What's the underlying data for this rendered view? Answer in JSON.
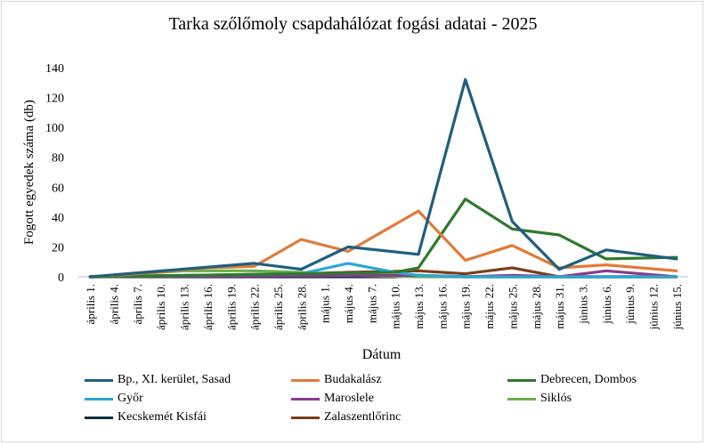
{
  "chart_data": {
    "type": "line",
    "title": "Tarka szőlőmoly csapdahálózat fogási adatai - 2025",
    "xlabel": "Dátum",
    "ylabel": "Fogott egyedek száma (db)",
    "ylim": [
      0,
      140
    ],
    "yticks": [
      "0",
      "20",
      "40",
      "60",
      "80",
      "100",
      "120",
      "140"
    ],
    "grid": false,
    "legend_position": "bottom",
    "x": [
      "április 1.",
      "április 4.",
      "április 7.",
      "április 10.",
      "április 13.",
      "április 16.",
      "április 19.",
      "április 22.",
      "április 25.",
      "április 28.",
      "május 1.",
      "május 4.",
      "május 7.",
      "május 10.",
      "május 13.",
      "május 16.",
      "május 19.",
      "május 22.",
      "május 25.",
      "május 28.",
      "május 31.",
      "június 3.",
      "június 6.",
      "június 9.",
      "június 12.",
      "június 15."
    ],
    "series": [
      {
        "name": "Bp., XI. kerület, Sasad",
        "color": "#1f5f7f",
        "points": [
          [
            0,
            0
          ],
          [
            7,
            9
          ],
          [
            9,
            5
          ],
          [
            11,
            20
          ],
          [
            14,
            15
          ],
          [
            16,
            132
          ],
          [
            18,
            37
          ],
          [
            20,
            5
          ],
          [
            22,
            18
          ],
          [
            25,
            12
          ]
        ]
      },
      {
        "name": "Budakalász",
        "color": "#e07b39",
        "points": [
          [
            0,
            0
          ],
          [
            2,
            2
          ],
          [
            5,
            6
          ],
          [
            7,
            7
          ],
          [
            9,
            25
          ],
          [
            11,
            17
          ],
          [
            14,
            44
          ],
          [
            16,
            11
          ],
          [
            18,
            21
          ],
          [
            20,
            6
          ],
          [
            22,
            8
          ],
          [
            25,
            4
          ]
        ]
      },
      {
        "name": "Debrecen, Dombos",
        "color": "#2d7a2d",
        "points": [
          [
            0,
            0
          ],
          [
            13,
            3
          ],
          [
            14,
            6
          ],
          [
            16,
            52
          ],
          [
            18,
            32
          ],
          [
            20,
            28
          ],
          [
            22,
            12
          ],
          [
            25,
            13
          ]
        ]
      },
      {
        "name": "Győr",
        "color": "#2aa8d4",
        "points": [
          [
            0,
            0
          ],
          [
            9,
            2
          ],
          [
            11,
            9
          ],
          [
            13,
            3
          ],
          [
            14,
            1
          ],
          [
            16,
            0
          ],
          [
            25,
            0
          ]
        ]
      },
      {
        "name": "Maroslele",
        "color": "#8b3a8b",
        "points": [
          [
            0,
            0
          ],
          [
            14,
            1
          ],
          [
            16,
            0
          ],
          [
            18,
            1
          ],
          [
            20,
            0
          ],
          [
            22,
            4
          ],
          [
            25,
            0
          ]
        ]
      },
      {
        "name": "Siklós",
        "color": "#6ab04c",
        "points": [
          [
            0,
            0
          ],
          [
            4,
            4
          ],
          [
            7,
            4
          ],
          [
            9,
            3
          ],
          [
            11,
            1
          ],
          [
            14,
            0
          ],
          [
            16,
            0
          ],
          [
            25,
            0
          ]
        ]
      },
      {
        "name": "Kecskemét Kisfái",
        "color": "#0f3040",
        "points": [
          [
            0,
            0
          ],
          [
            13,
            0
          ],
          [
            14,
            1
          ],
          [
            16,
            0
          ],
          [
            25,
            0
          ]
        ]
      },
      {
        "name": "Zalaszentlőrinc",
        "color": "#7b3d1a",
        "points": [
          [
            0,
            0
          ],
          [
            9,
            2
          ],
          [
            11,
            3
          ],
          [
            14,
            4
          ],
          [
            16,
            2
          ],
          [
            18,
            6
          ],
          [
            20,
            0
          ],
          [
            25,
            0
          ]
        ]
      }
    ]
  }
}
